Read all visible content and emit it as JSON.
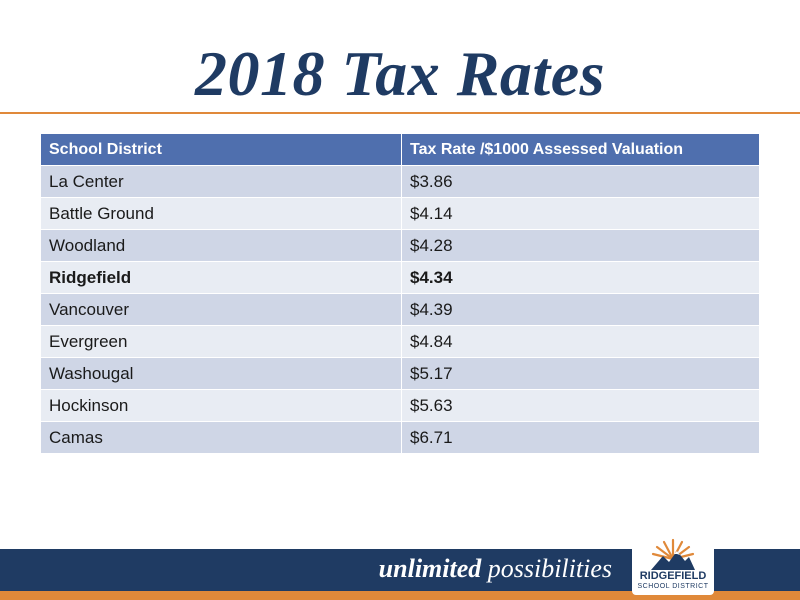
{
  "title": "2018 Tax Rates",
  "table": {
    "headers": [
      "School District",
      "Tax Rate /$1000  Assessed Valuation"
    ],
    "rows": [
      {
        "district": "La Center",
        "rate": "$3.86"
      },
      {
        "district": "Battle Ground",
        "rate": "$4.14"
      },
      {
        "district": "Woodland",
        "rate": "$4.28"
      },
      {
        "district": "Ridgefield",
        "rate": "$4.34"
      },
      {
        "district": "Vancouver",
        "rate": "$4.39"
      },
      {
        "district": "Evergreen",
        "rate": "$4.84"
      },
      {
        "district": "Washougal",
        "rate": "$5.17"
      },
      {
        "district": "Hockinson",
        "rate": "$5.63"
      },
      {
        "district": "Camas",
        "rate": "$6.71"
      }
    ]
  },
  "footer": {
    "tagline_bold": "unlimited",
    "tagline_rest": "possibilities",
    "logo_name": "RIDGEFIELD",
    "logo_sub": "SCHOOL DISTRICT"
  },
  "colors": {
    "title": "#1f3b63",
    "accent": "#e0893a",
    "header_fill": "#4f6fae",
    "row_odd": "#cfd6e6",
    "row_even": "#e8ecf3",
    "footer_band": "#1f3b63"
  },
  "icons": [
    "ridgefield-logo-icon"
  ]
}
